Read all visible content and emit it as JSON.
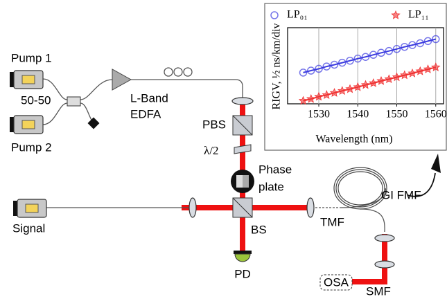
{
  "labels": {
    "pump1": "Pump 1",
    "splitter": "50-50",
    "pump2": "Pump 2",
    "edfa_line1": "L-Band",
    "edfa_line2": "EDFA",
    "pbs": "PBS",
    "half_wave": "λ/2",
    "phase_line1": "Phase",
    "phase_line2": "plate",
    "signal": "Signal",
    "bs": "BS",
    "pd": "PD",
    "tmf": "TMF",
    "gi_fmf": "GI FMF",
    "osa": "OSA",
    "smf": "SMF"
  },
  "chart_data": {
    "type": "scatter",
    "xlabel": "Wavelength (nm)",
    "ylabel": "RIGV, ½ ns/km/div",
    "x": [
      1526,
      1528,
      1530,
      1532,
      1534,
      1536,
      1538,
      1540,
      1542,
      1544,
      1546,
      1548,
      1550,
      1552,
      1554,
      1556,
      1558,
      1560
    ],
    "series": [
      {
        "name": "LP₀₁",
        "color": "#3a3adf",
        "marker": "circle",
        "values": [
          2.05,
          2.18,
          2.3,
          2.45,
          2.57,
          2.7,
          2.83,
          2.97,
          3.08,
          3.22,
          3.35,
          3.47,
          3.6,
          3.74,
          3.86,
          3.98,
          4.12,
          4.25
        ]
      },
      {
        "name": "LP₁₁",
        "color": "#f03030",
        "marker": "star",
        "values": [
          0.2,
          0.32,
          0.47,
          0.58,
          0.72,
          0.85,
          0.97,
          1.1,
          1.24,
          1.36,
          1.5,
          1.62,
          1.75,
          1.88,
          2.0,
          2.14,
          2.27,
          2.4
        ]
      }
    ],
    "xlim": [
      1522,
      1562
    ],
    "ylim": [
      0,
      5
    ],
    "xticks": [
      1530,
      1540,
      1550,
      1560
    ],
    "grid": true
  }
}
